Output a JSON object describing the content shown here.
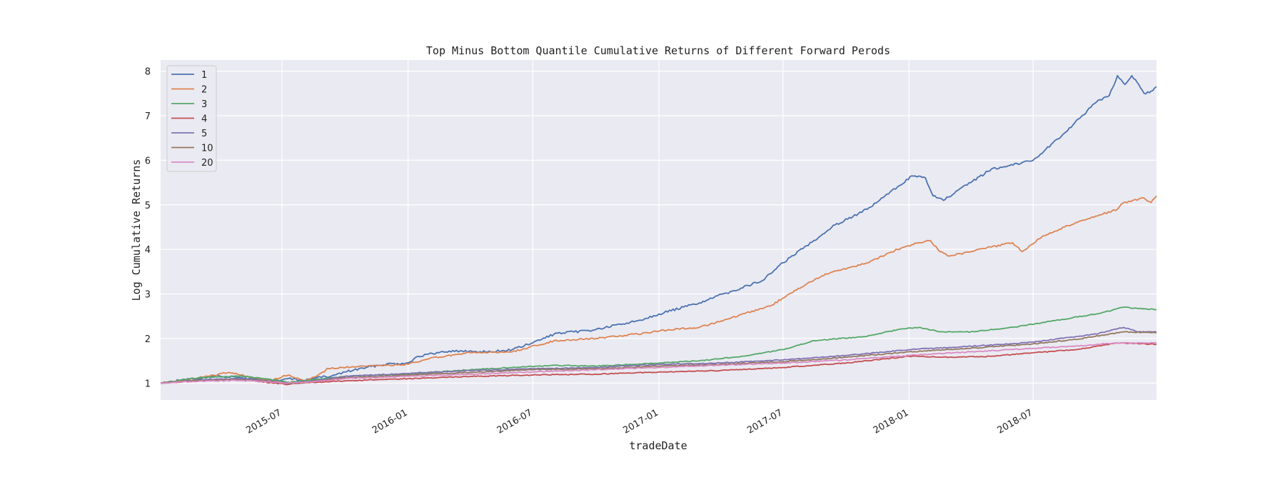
{
  "chart_data": {
    "type": "line",
    "title": "Top Minus Bottom Quantile Cumulative Returns of Different Forward Perods",
    "xlabel": "tradeDate",
    "ylabel": "Log Cumulative Returns",
    "x_range": [
      "2015-01-05",
      "2018-12-28"
    ],
    "ylim": [
      0.62,
      8.25
    ],
    "yticks": [
      1,
      2,
      3,
      4,
      5,
      6,
      7,
      8
    ],
    "xticks": [
      "2015-07",
      "2016-01",
      "2016-07",
      "2017-01",
      "2017-07",
      "2018-01",
      "2018-07"
    ],
    "grid": true,
    "legend_position": "top-left",
    "background": "#eaeaf2",
    "series": [
      {
        "name": "1",
        "color": "#4c72b0",
        "points": [
          [
            "2015-01-05",
            1.0
          ],
          [
            "2015-02-01",
            1.06
          ],
          [
            "2015-03-01",
            1.1
          ],
          [
            "2015-04-01",
            1.16
          ],
          [
            "2015-05-01",
            1.12
          ],
          [
            "2015-06-01",
            1.08
          ],
          [
            "2015-06-25",
            1.05
          ],
          [
            "2015-07-10",
            1.1
          ],
          [
            "2015-08-01",
            1.06
          ],
          [
            "2015-08-20",
            1.12
          ],
          [
            "2015-09-10",
            1.15
          ],
          [
            "2015-10-01",
            1.25
          ],
          [
            "2015-11-01",
            1.35
          ],
          [
            "2015-12-01",
            1.43
          ],
          [
            "2016-01-01",
            1.45
          ],
          [
            "2016-01-15",
            1.6
          ],
          [
            "2016-03-01",
            1.72
          ],
          [
            "2016-05-01",
            1.7
          ],
          [
            "2016-06-01",
            1.75
          ],
          [
            "2016-07-01",
            1.9
          ],
          [
            "2016-08-01",
            2.1
          ],
          [
            "2016-10-01",
            2.2
          ],
          [
            "2016-12-01",
            2.4
          ],
          [
            "2017-01-01",
            2.55
          ],
          [
            "2017-03-01",
            2.8
          ],
          [
            "2017-04-15",
            3.05
          ],
          [
            "2017-06-01",
            3.3
          ],
          [
            "2017-07-01",
            3.7
          ],
          [
            "2017-08-15",
            4.2
          ],
          [
            "2017-09-15",
            4.55
          ],
          [
            "2017-11-01",
            4.9
          ],
          [
            "2017-12-15",
            5.4
          ],
          [
            "2018-01-05",
            5.65
          ],
          [
            "2018-01-25",
            5.6
          ],
          [
            "2018-02-05",
            5.2
          ],
          [
            "2018-02-20",
            5.1
          ],
          [
            "2018-04-01",
            5.5
          ],
          [
            "2018-05-01",
            5.8
          ],
          [
            "2018-06-15",
            5.95
          ],
          [
            "2018-07-01",
            6.0
          ],
          [
            "2018-08-15",
            6.6
          ],
          [
            "2018-10-01",
            7.3
          ],
          [
            "2018-10-20",
            7.45
          ],
          [
            "2018-11-01",
            7.9
          ],
          [
            "2018-11-12",
            7.7
          ],
          [
            "2018-11-22",
            7.9
          ],
          [
            "2018-12-10",
            7.5
          ],
          [
            "2018-12-20",
            7.55
          ],
          [
            "2018-12-28",
            7.65
          ]
        ]
      },
      {
        "name": "2",
        "color": "#dd8452",
        "points": [
          [
            "2015-01-05",
            1.0
          ],
          [
            "2015-02-01",
            1.05
          ],
          [
            "2015-03-15",
            1.15
          ],
          [
            "2015-04-15",
            1.24
          ],
          [
            "2015-05-15",
            1.13
          ],
          [
            "2015-06-15",
            1.05
          ],
          [
            "2015-07-10",
            1.18
          ],
          [
            "2015-08-01",
            1.06
          ],
          [
            "2015-08-20",
            1.15
          ],
          [
            "2015-09-01",
            1.25
          ],
          [
            "2015-09-05",
            1.33
          ],
          [
            "2015-10-15",
            1.36
          ],
          [
            "2015-12-01",
            1.4
          ],
          [
            "2016-01-01",
            1.42
          ],
          [
            "2016-02-01",
            1.55
          ],
          [
            "2016-04-01",
            1.68
          ],
          [
            "2016-06-01",
            1.7
          ],
          [
            "2016-08-01",
            1.95
          ],
          [
            "2016-10-01",
            2.0
          ],
          [
            "2016-12-01",
            2.1
          ],
          [
            "2017-01-15",
            2.2
          ],
          [
            "2017-03-01",
            2.25
          ],
          [
            "2017-04-15",
            2.45
          ],
          [
            "2017-06-15",
            2.75
          ],
          [
            "2017-07-10",
            3.0
          ],
          [
            "2017-09-01",
            3.45
          ],
          [
            "2017-11-01",
            3.7
          ],
          [
            "2017-12-15",
            4.0
          ],
          [
            "2018-01-15",
            4.15
          ],
          [
            "2018-02-01",
            4.2
          ],
          [
            "2018-02-15",
            3.95
          ],
          [
            "2018-03-01",
            3.85
          ],
          [
            "2018-05-01",
            4.05
          ],
          [
            "2018-06-01",
            4.15
          ],
          [
            "2018-06-15",
            3.95
          ],
          [
            "2018-07-15",
            4.3
          ],
          [
            "2018-09-01",
            4.6
          ],
          [
            "2018-11-01",
            4.9
          ],
          [
            "2018-11-10",
            5.05
          ],
          [
            "2018-12-10",
            5.15
          ],
          [
            "2018-12-20",
            5.05
          ],
          [
            "2018-12-28",
            5.2
          ]
        ]
      },
      {
        "name": "3",
        "color": "#55a868",
        "points": [
          [
            "2015-01-05",
            1.0
          ],
          [
            "2015-03-01",
            1.12
          ],
          [
            "2015-05-01",
            1.16
          ],
          [
            "2015-06-15",
            1.08
          ],
          [
            "2015-07-10",
            1.02
          ],
          [
            "2015-08-01",
            1.05
          ],
          [
            "2015-10-01",
            1.15
          ],
          [
            "2016-01-01",
            1.2
          ],
          [
            "2016-04-01",
            1.3
          ],
          [
            "2016-06-01",
            1.35
          ],
          [
            "2016-08-01",
            1.4
          ],
          [
            "2016-10-01",
            1.38
          ],
          [
            "2017-01-01",
            1.45
          ],
          [
            "2017-03-01",
            1.5
          ],
          [
            "2017-05-01",
            1.6
          ],
          [
            "2017-07-01",
            1.75
          ],
          [
            "2017-08-15",
            1.95
          ],
          [
            "2017-11-01",
            2.05
          ],
          [
            "2017-12-15",
            2.2
          ],
          [
            "2018-01-15",
            2.25
          ],
          [
            "2018-02-15",
            2.15
          ],
          [
            "2018-04-01",
            2.15
          ],
          [
            "2018-06-01",
            2.25
          ],
          [
            "2018-08-01",
            2.4
          ],
          [
            "2018-10-01",
            2.55
          ],
          [
            "2018-11-10",
            2.7
          ],
          [
            "2018-12-28",
            2.65
          ]
        ]
      },
      {
        "name": "4",
        "color": "#c44e52",
        "points": [
          [
            "2015-01-05",
            1.0
          ],
          [
            "2015-03-01",
            1.05
          ],
          [
            "2015-05-01",
            1.08
          ],
          [
            "2015-06-20",
            1.0
          ],
          [
            "2015-07-10",
            0.97
          ],
          [
            "2015-08-01",
            1.0
          ],
          [
            "2015-10-01",
            1.05
          ],
          [
            "2016-01-01",
            1.1
          ],
          [
            "2016-04-01",
            1.15
          ],
          [
            "2016-07-01",
            1.18
          ],
          [
            "2016-10-01",
            1.2
          ],
          [
            "2017-01-01",
            1.25
          ],
          [
            "2017-04-01",
            1.28
          ],
          [
            "2017-07-01",
            1.35
          ],
          [
            "2017-10-01",
            1.45
          ],
          [
            "2018-01-01",
            1.6
          ],
          [
            "2018-03-01",
            1.58
          ],
          [
            "2018-05-01",
            1.6
          ],
          [
            "2018-07-01",
            1.68
          ],
          [
            "2018-09-01",
            1.75
          ],
          [
            "2018-11-01",
            1.9
          ],
          [
            "2018-12-28",
            1.87
          ]
        ]
      },
      {
        "name": "5",
        "color": "#8172b3",
        "points": [
          [
            "2015-01-05",
            1.0
          ],
          [
            "2015-03-01",
            1.07
          ],
          [
            "2015-05-01",
            1.1
          ],
          [
            "2015-06-20",
            1.04
          ],
          [
            "2015-07-10",
            1.0
          ],
          [
            "2015-08-15",
            1.05
          ],
          [
            "2015-10-01",
            1.15
          ],
          [
            "2016-01-01",
            1.22
          ],
          [
            "2016-04-01",
            1.28
          ],
          [
            "2016-07-01",
            1.32
          ],
          [
            "2016-10-01",
            1.35
          ],
          [
            "2017-01-01",
            1.42
          ],
          [
            "2017-04-01",
            1.45
          ],
          [
            "2017-07-01",
            1.52
          ],
          [
            "2017-10-01",
            1.62
          ],
          [
            "2018-01-01",
            1.75
          ],
          [
            "2018-03-01",
            1.8
          ],
          [
            "2018-06-01",
            1.88
          ],
          [
            "2018-08-01",
            1.98
          ],
          [
            "2018-10-01",
            2.1
          ],
          [
            "2018-11-10",
            2.25
          ],
          [
            "2018-12-01",
            2.15
          ],
          [
            "2018-12-28",
            2.15
          ]
        ]
      },
      {
        "name": "10",
        "color": "#937860",
        "points": [
          [
            "2015-01-05",
            1.0
          ],
          [
            "2015-03-01",
            1.06
          ],
          [
            "2015-05-01",
            1.08
          ],
          [
            "2015-06-20",
            1.03
          ],
          [
            "2015-07-10",
            0.99
          ],
          [
            "2015-08-15",
            1.04
          ],
          [
            "2015-10-01",
            1.12
          ],
          [
            "2016-01-01",
            1.18
          ],
          [
            "2016-04-01",
            1.24
          ],
          [
            "2016-07-01",
            1.3
          ],
          [
            "2016-10-01",
            1.32
          ],
          [
            "2017-01-01",
            1.38
          ],
          [
            "2017-04-01",
            1.42
          ],
          [
            "2017-07-01",
            1.48
          ],
          [
            "2017-10-01",
            1.58
          ],
          [
            "2018-01-01",
            1.7
          ],
          [
            "2018-04-01",
            1.78
          ],
          [
            "2018-07-01",
            1.88
          ],
          [
            "2018-09-01",
            1.98
          ],
          [
            "2018-11-10",
            2.15
          ],
          [
            "2018-12-28",
            2.13
          ]
        ]
      },
      {
        "name": "20",
        "color": "#da8bc3",
        "points": [
          [
            "2015-01-05",
            1.0
          ],
          [
            "2015-03-01",
            1.04
          ],
          [
            "2015-05-01",
            1.06
          ],
          [
            "2015-06-20",
            1.02
          ],
          [
            "2015-07-10",
            1.0
          ],
          [
            "2015-08-15",
            1.03
          ],
          [
            "2015-10-01",
            1.1
          ],
          [
            "2016-01-01",
            1.15
          ],
          [
            "2016-04-01",
            1.2
          ],
          [
            "2016-07-01",
            1.25
          ],
          [
            "2016-10-01",
            1.3
          ],
          [
            "2017-01-01",
            1.35
          ],
          [
            "2017-04-01",
            1.4
          ],
          [
            "2017-07-01",
            1.45
          ],
          [
            "2017-10-01",
            1.52
          ],
          [
            "2018-01-01",
            1.62
          ],
          [
            "2018-04-01",
            1.7
          ],
          [
            "2018-07-01",
            1.78
          ],
          [
            "2018-09-01",
            1.83
          ],
          [
            "2018-11-01",
            1.9
          ],
          [
            "2018-12-28",
            1.9
          ]
        ]
      }
    ]
  }
}
